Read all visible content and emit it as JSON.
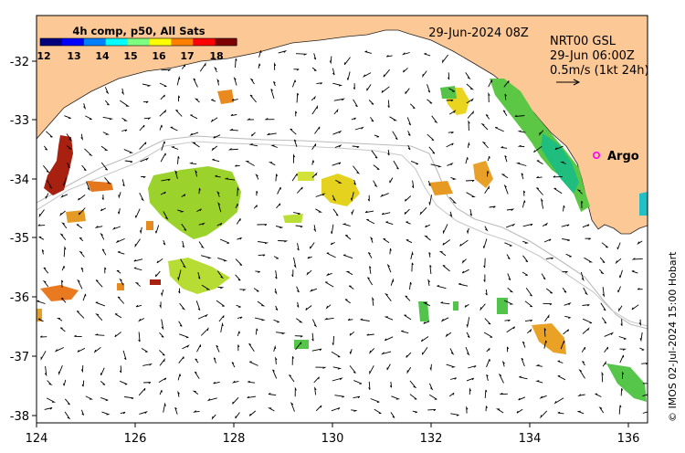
{
  "map": {
    "title": "4h comp, p50, All Sats",
    "colorbar_ticks": [
      "12",
      "13",
      "14",
      "15",
      "16",
      "17",
      "18"
    ],
    "colorbar_colors": [
      "#00007f",
      "#0000ff",
      "#007fff",
      "#00ffff",
      "#7fff7f",
      "#ffff00",
      "#ff7f00",
      "#ff0000",
      "#7f0000"
    ],
    "date_label": "29-Jun-2024 08Z",
    "vector_source": "NRT00 GSL",
    "vector_time": "29-Jun 06:00Z",
    "vector_scale_label": "0.5m/s (1kt 24h)",
    "argo_label": "Argo",
    "credit": "© IMOS 02-Jul-2024 15:00 Hobart",
    "x_ticks": [
      "124",
      "126",
      "128",
      "130",
      "132",
      "134",
      "136"
    ],
    "y_ticks": [
      "-32",
      "-33",
      "-34",
      "-35",
      "-36",
      "-37",
      "-38"
    ],
    "land_color": "#fcc896",
    "argo_color": "#ff00ff"
  }
}
